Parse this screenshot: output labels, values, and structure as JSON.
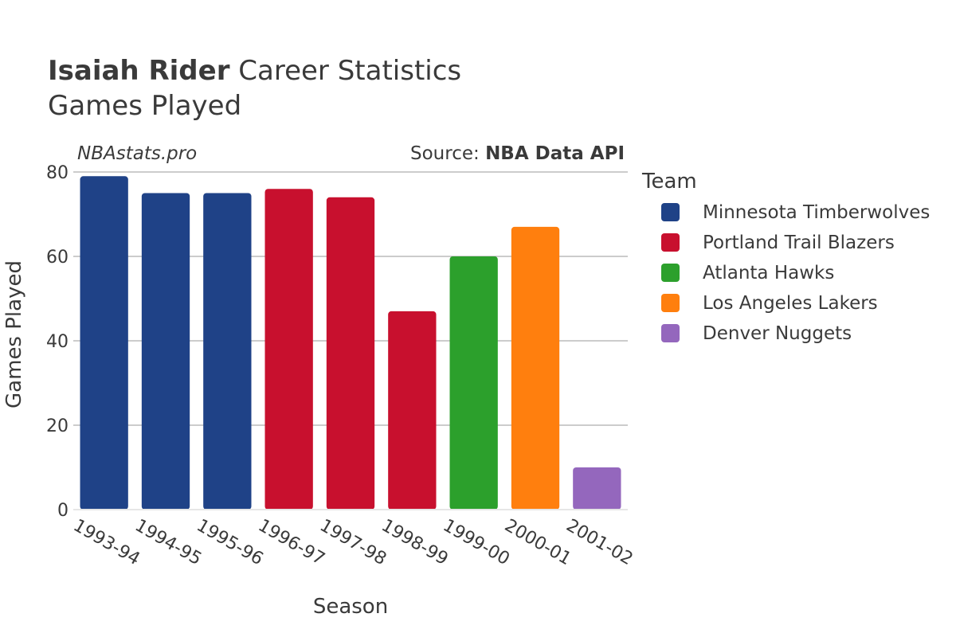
{
  "header": {
    "player_name": "Isaiah Rider",
    "title_rest": " Career Statistics",
    "subtitle": "Games Played"
  },
  "watermark": "NBAstats.pro",
  "source": {
    "prefix": "Source: ",
    "name": "NBA Data API"
  },
  "legend": {
    "title": "Team"
  },
  "chart_data": {
    "type": "bar",
    "title": "Isaiah Rider Career Statistics",
    "subtitle": "Games Played",
    "xlabel": "Season",
    "ylabel": "Games Played",
    "ylim": [
      0,
      80
    ],
    "yticks": [
      0,
      20,
      40,
      60,
      80
    ],
    "grid": true,
    "legend_position": "right",
    "categories": [
      "1993-94",
      "1994-95",
      "1995-96",
      "1996-97",
      "1997-98",
      "1998-99",
      "1999-00",
      "2000-01",
      "2001-02"
    ],
    "values": [
      79,
      75,
      75,
      76,
      74,
      47,
      60,
      67,
      10
    ],
    "bar_teams": [
      "Minnesota Timberwolves",
      "Minnesota Timberwolves",
      "Minnesota Timberwolves",
      "Portland Trail Blazers",
      "Portland Trail Blazers",
      "Portland Trail Blazers",
      "Atlanta Hawks",
      "Los Angeles Lakers",
      "Denver Nuggets"
    ],
    "teams": [
      {
        "name": "Minnesota Timberwolves",
        "color": "#1f4287"
      },
      {
        "name": "Portland Trail Blazers",
        "color": "#c8102e"
      },
      {
        "name": "Atlanta Hawks",
        "color": "#2ca02c"
      },
      {
        "name": "Los Angeles Lakers",
        "color": "#ff7f0e"
      },
      {
        "name": "Denver Nuggets",
        "color": "#9467bd"
      }
    ]
  }
}
